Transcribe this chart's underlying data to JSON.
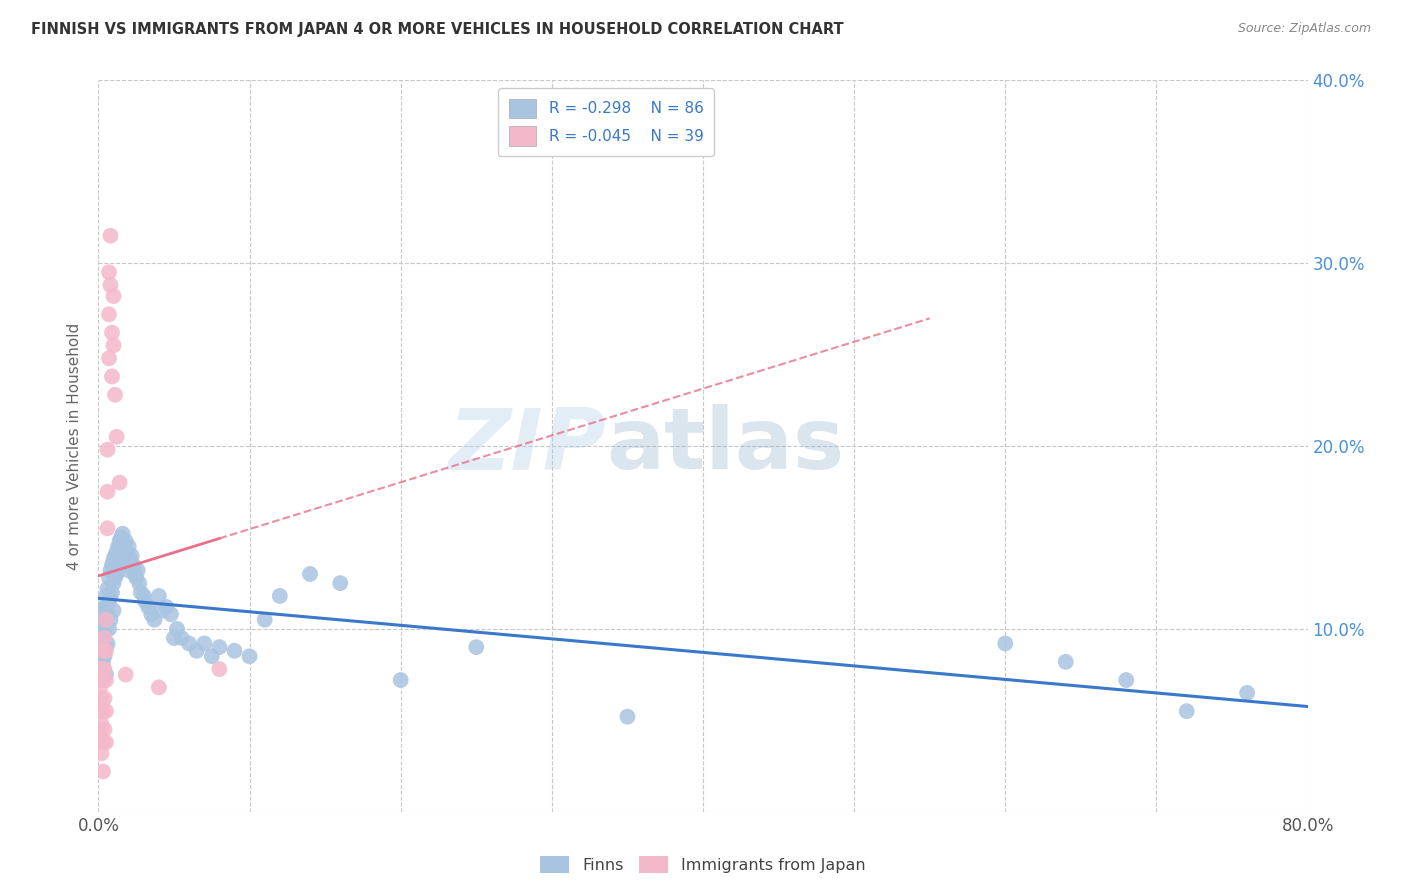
{
  "title": "FINNISH VS IMMIGRANTS FROM JAPAN 4 OR MORE VEHICLES IN HOUSEHOLD CORRELATION CHART",
  "source": "Source: ZipAtlas.com",
  "ylabel": "4 or more Vehicles in Household",
  "watermark_zip": "ZIP",
  "watermark_atlas": "atlas",
  "legend_r_finns": "R = -0.298",
  "legend_n_finns": "N = 86",
  "legend_r_japan": "R = -0.045",
  "legend_n_japan": "N = 39",
  "finns_color": "#a8c4e0",
  "japan_color": "#f4b8cb",
  "finn_line_color": "#3a78c9",
  "japan_line_color": "#e8708a",
  "xmin": 0.0,
  "xmax": 0.8,
  "ymin": 0.0,
  "ymax": 0.4,
  "background_color": "#ffffff",
  "grid_color": "#c8c8c8",
  "finns_x": [
    0.001,
    0.001,
    0.002,
    0.002,
    0.002,
    0.003,
    0.003,
    0.003,
    0.003,
    0.004,
    0.004,
    0.004,
    0.005,
    0.005,
    0.005,
    0.005,
    0.006,
    0.006,
    0.006,
    0.007,
    0.007,
    0.007,
    0.008,
    0.008,
    0.008,
    0.009,
    0.009,
    0.01,
    0.01,
    0.01,
    0.011,
    0.011,
    0.012,
    0.012,
    0.013,
    0.013,
    0.014,
    0.015,
    0.015,
    0.016,
    0.016,
    0.017,
    0.018,
    0.018,
    0.019,
    0.02,
    0.02,
    0.021,
    0.022,
    0.023,
    0.024,
    0.025,
    0.026,
    0.027,
    0.028,
    0.03,
    0.031,
    0.033,
    0.035,
    0.037,
    0.04,
    0.042,
    0.045,
    0.048,
    0.05,
    0.052,
    0.055,
    0.06,
    0.065,
    0.07,
    0.075,
    0.08,
    0.09,
    0.1,
    0.11,
    0.12,
    0.14,
    0.16,
    0.2,
    0.25,
    0.35,
    0.6,
    0.64,
    0.68,
    0.72,
    0.76
  ],
  "finns_y": [
    0.095,
    0.11,
    0.1,
    0.088,
    0.078,
    0.105,
    0.092,
    0.082,
    0.072,
    0.112,
    0.098,
    0.085,
    0.118,
    0.105,
    0.09,
    0.075,
    0.122,
    0.108,
    0.092,
    0.128,
    0.115,
    0.1,
    0.132,
    0.118,
    0.105,
    0.135,
    0.12,
    0.138,
    0.125,
    0.11,
    0.14,
    0.128,
    0.142,
    0.13,
    0.145,
    0.132,
    0.148,
    0.15,
    0.138,
    0.152,
    0.14,
    0.145,
    0.148,
    0.135,
    0.142,
    0.145,
    0.132,
    0.138,
    0.14,
    0.135,
    0.13,
    0.128,
    0.132,
    0.125,
    0.12,
    0.118,
    0.115,
    0.112,
    0.108,
    0.105,
    0.118,
    0.11,
    0.112,
    0.108,
    0.095,
    0.1,
    0.095,
    0.092,
    0.088,
    0.092,
    0.085,
    0.09,
    0.088,
    0.085,
    0.105,
    0.118,
    0.13,
    0.125,
    0.072,
    0.09,
    0.052,
    0.092,
    0.082,
    0.072,
    0.055,
    0.065
  ],
  "japan_x": [
    0.001,
    0.001,
    0.001,
    0.002,
    0.002,
    0.002,
    0.002,
    0.003,
    0.003,
    0.003,
    0.003,
    0.003,
    0.004,
    0.004,
    0.004,
    0.004,
    0.005,
    0.005,
    0.005,
    0.005,
    0.005,
    0.006,
    0.006,
    0.006,
    0.007,
    0.007,
    0.007,
    0.008,
    0.008,
    0.009,
    0.009,
    0.01,
    0.01,
    0.011,
    0.012,
    0.014,
    0.018,
    0.04,
    0.08
  ],
  "japan_y": [
    0.068,
    0.055,
    0.042,
    0.078,
    0.062,
    0.048,
    0.032,
    0.088,
    0.072,
    0.055,
    0.038,
    0.022,
    0.095,
    0.078,
    0.062,
    0.045,
    0.105,
    0.088,
    0.072,
    0.055,
    0.038,
    0.198,
    0.175,
    0.155,
    0.295,
    0.272,
    0.248,
    0.315,
    0.288,
    0.262,
    0.238,
    0.282,
    0.255,
    0.228,
    0.205,
    0.18,
    0.075,
    0.068,
    0.078
  ]
}
